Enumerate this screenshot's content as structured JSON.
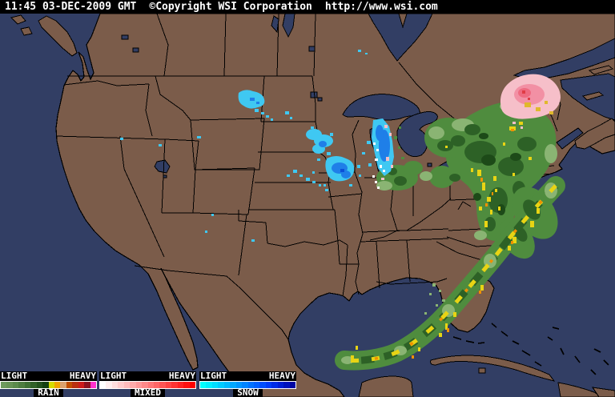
{
  "header": {
    "timestamp": "11:45 03-DEC-2009 GMT",
    "copyright": "©Copyright WSI Corporation",
    "url": "http://www.wsi.com"
  },
  "legend": {
    "panels": [
      {
        "id": "rain",
        "label": "RAIN",
        "left_label": "LIGHT",
        "right_label": "HEAVY",
        "colors": [
          "#6e9a5e",
          "#679356",
          "#5b8a4c",
          "#4e7d41",
          "#3f7035",
          "#316129",
          "#23511e",
          "#154012",
          "#d6dc00",
          "#f0a400",
          "#dba16e",
          "#c14d00",
          "#ba2f10",
          "#cc1a1a",
          "#8e1220",
          "#ff30cc"
        ]
      },
      {
        "id": "mixed",
        "label": "MIXED",
        "left_label": "LIGHT",
        "right_label": "HEAVY",
        "colors": [
          "#ffffff",
          "#ffeeee",
          "#ffdddd",
          "#ffcccc",
          "#ffbbbb",
          "#ffaaaa",
          "#ff9999",
          "#ff8888",
          "#ff7777",
          "#ff6666",
          "#ff5555",
          "#ff4444",
          "#ff3333",
          "#ff2222",
          "#ff1111",
          "#ff0000"
        ]
      },
      {
        "id": "snow",
        "label": "SNOW",
        "left_label": "LIGHT",
        "right_label": "HEAVY",
        "colors": [
          "#00ffff",
          "#00eeff",
          "#00ddff",
          "#00ccff",
          "#00baff",
          "#00a8ff",
          "#0096ff",
          "#0084ff",
          "#0072ff",
          "#0060ff",
          "#004eff",
          "#003cf8",
          "#002ce8",
          "#001ed4",
          "#0012bc",
          "#0008a4"
        ]
      }
    ]
  },
  "map": {
    "colors": {
      "ocean": "#323e64",
      "land": "#7b5c4a",
      "border": "#000000",
      "rain_light": "#8ab473",
      "rain_mid": "#4f8c3e",
      "rain_dark": "#2d6126",
      "rain_darkest": "#1d4a18",
      "rain_yellow": "#e8d414",
      "rain_orange": "#f09000",
      "mixed_light": "#f6bfc9",
      "mixed_mid": "#f290a4",
      "mixed_deep": "#ee6a80",
      "mixed_red": "#e03c46",
      "mixed_gold": "#e0b82c",
      "snow_cyan": "#3fc8f2",
      "snow_blue": "#1f7fe8",
      "snow_deep": "#0a50d8",
      "white": "#ffffff"
    }
  }
}
